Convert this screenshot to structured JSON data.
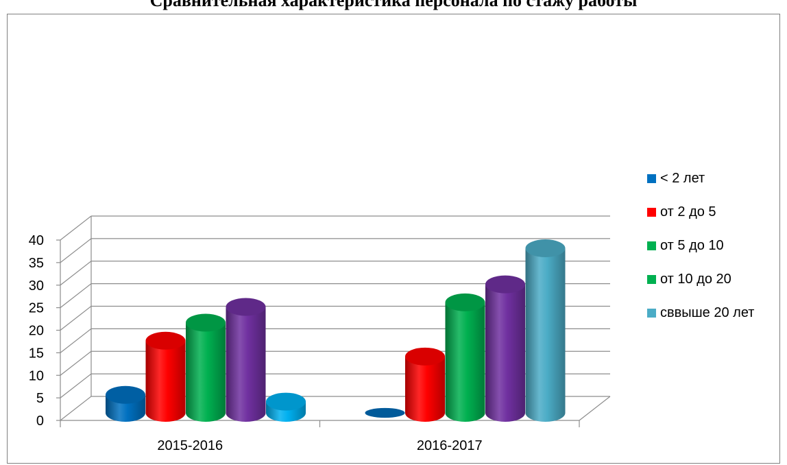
{
  "chart_data": {
    "type": "bar",
    "title": "Сравнительная характеристика персонала по стажу работы",
    "categories": [
      "2015-2016",
      "2016-2017"
    ],
    "series": [
      {
        "name": "< 2 лет",
        "color": "#0070c0",
        "values": [
          4,
          0
        ]
      },
      {
        "name": "от 2 до 5",
        "color": "#ff0000",
        "values": [
          16,
          12.5
        ]
      },
      {
        "name": "от 5 до 10",
        "color": "#00b050",
        "values": [
          20,
          24.5
        ]
      },
      {
        "name": "от 10 до 20",
        "color": "#7030a0",
        "values": [
          23.5,
          28.5
        ]
      },
      {
        "name": "свыше 20 лет",
        "color": "#4bacc6",
        "values": [
          2.5,
          36.5
        ]
      }
    ],
    "series_colors_by_category": [
      [
        "#0070c0",
        "#ff0000",
        "#00b050",
        "#7030a0",
        "#00b0f0"
      ],
      [
        "#0070c0",
        "#ff0000",
        "#00b050",
        "#7030a0",
        "#4bacc6"
      ]
    ],
    "legend_entries": [
      {
        "label": "< 2 лет",
        "color": "#0070c0"
      },
      {
        "label": "от 2 до 5",
        "color": "#ff0000"
      },
      {
        "label": "от 5 до 10",
        "color": "#00b050"
      },
      {
        "label": "от 10 до 20",
        "color": "#00b050"
      },
      {
        "label": "сввыше 20 лет",
        "color": "#4bacc6"
      }
    ],
    "y_ticks": [
      "0",
      "5",
      "10",
      "15",
      "20",
      "25",
      "30",
      "35",
      "40"
    ],
    "ylim": [
      0,
      40
    ],
    "grid": true,
    "legend_position": "right"
  }
}
